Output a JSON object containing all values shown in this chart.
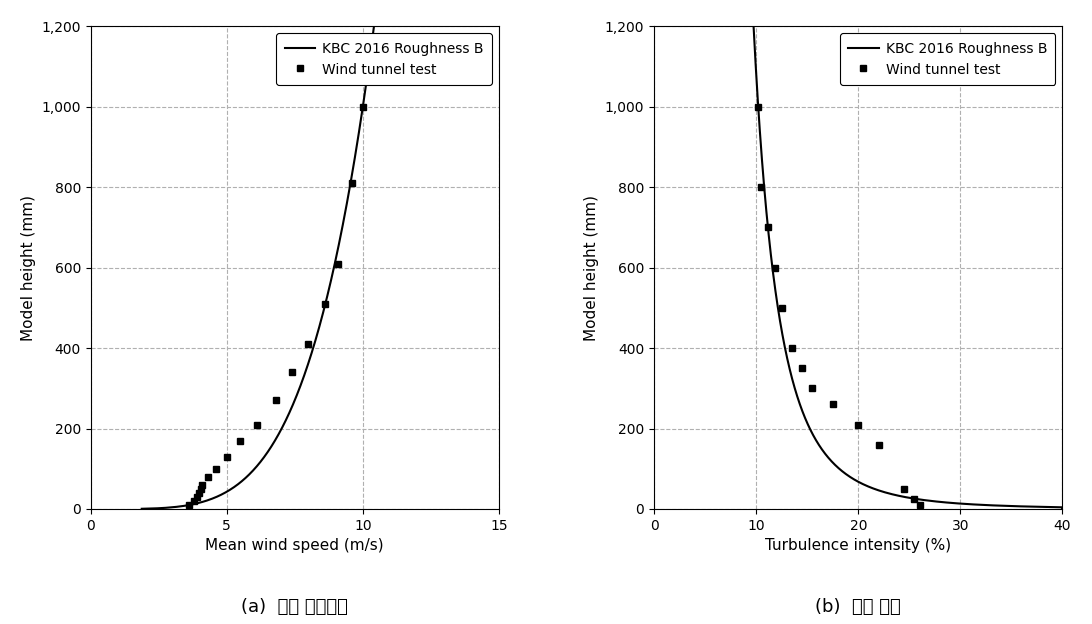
{
  "left_chart": {
    "xlabel": "Mean wind speed (m/s)",
    "ylabel": "Model height (mm)",
    "xlim": [
      0,
      15
    ],
    "ylim": [
      0,
      1200
    ],
    "xticks": [
      0,
      5,
      10,
      15
    ],
    "yticks": [
      0,
      200,
      400,
      600,
      800,
      1000,
      1200
    ],
    "wind_test_x": [
      3.6,
      3.8,
      3.9,
      4.0,
      4.05,
      4.1,
      4.3,
      4.6,
      5.0,
      5.5,
      6.1,
      6.8,
      7.4,
      8.0,
      8.6,
      9.1,
      9.6,
      10.0
    ],
    "wind_test_y": [
      10,
      20,
      30,
      40,
      50,
      60,
      80,
      100,
      130,
      170,
      210,
      270,
      340,
      410,
      510,
      610,
      810,
      1000
    ],
    "kbc_alpha": 0.22,
    "kbc_ref_height": 1000,
    "kbc_ref_speed": 10.0,
    "caption": "(a)  풍속 고도분포"
  },
  "right_chart": {
    "xlabel": "Turbulence intensity (%)",
    "ylabel": "Model height (mm)",
    "xlim": [
      0,
      40
    ],
    "ylim": [
      0,
      1200
    ],
    "xticks": [
      0,
      10,
      20,
      30,
      40
    ],
    "yticks": [
      0,
      200,
      400,
      600,
      800,
      1000,
      1200
    ],
    "turb_test_x": [
      10.2,
      10.5,
      11.2,
      11.8,
      12.5,
      13.5,
      14.5,
      15.5,
      17.5,
      20.0,
      22.0,
      24.5,
      25.5,
      26.0
    ],
    "turb_test_y": [
      1000,
      800,
      700,
      600,
      500,
      400,
      350,
      300,
      260,
      210,
      160,
      50,
      25,
      10
    ],
    "turb_n": 0.25,
    "turb_ref_height": 1000,
    "turb_ref_intensity": 10.2,
    "caption": "(b)  난류 강도"
  },
  "legend_line_label": "KBC 2016 Roughness B",
  "legend_marker_label": "Wind tunnel test",
  "line_color": "#000000",
  "marker_color": "#000000",
  "grid_color": "#b0b0b0",
  "grid_linestyle": "--",
  "background_color": "#ffffff",
  "tick_fontsize": 10,
  "label_fontsize": 11,
  "legend_fontsize": 10,
  "caption_fontsize": 13
}
